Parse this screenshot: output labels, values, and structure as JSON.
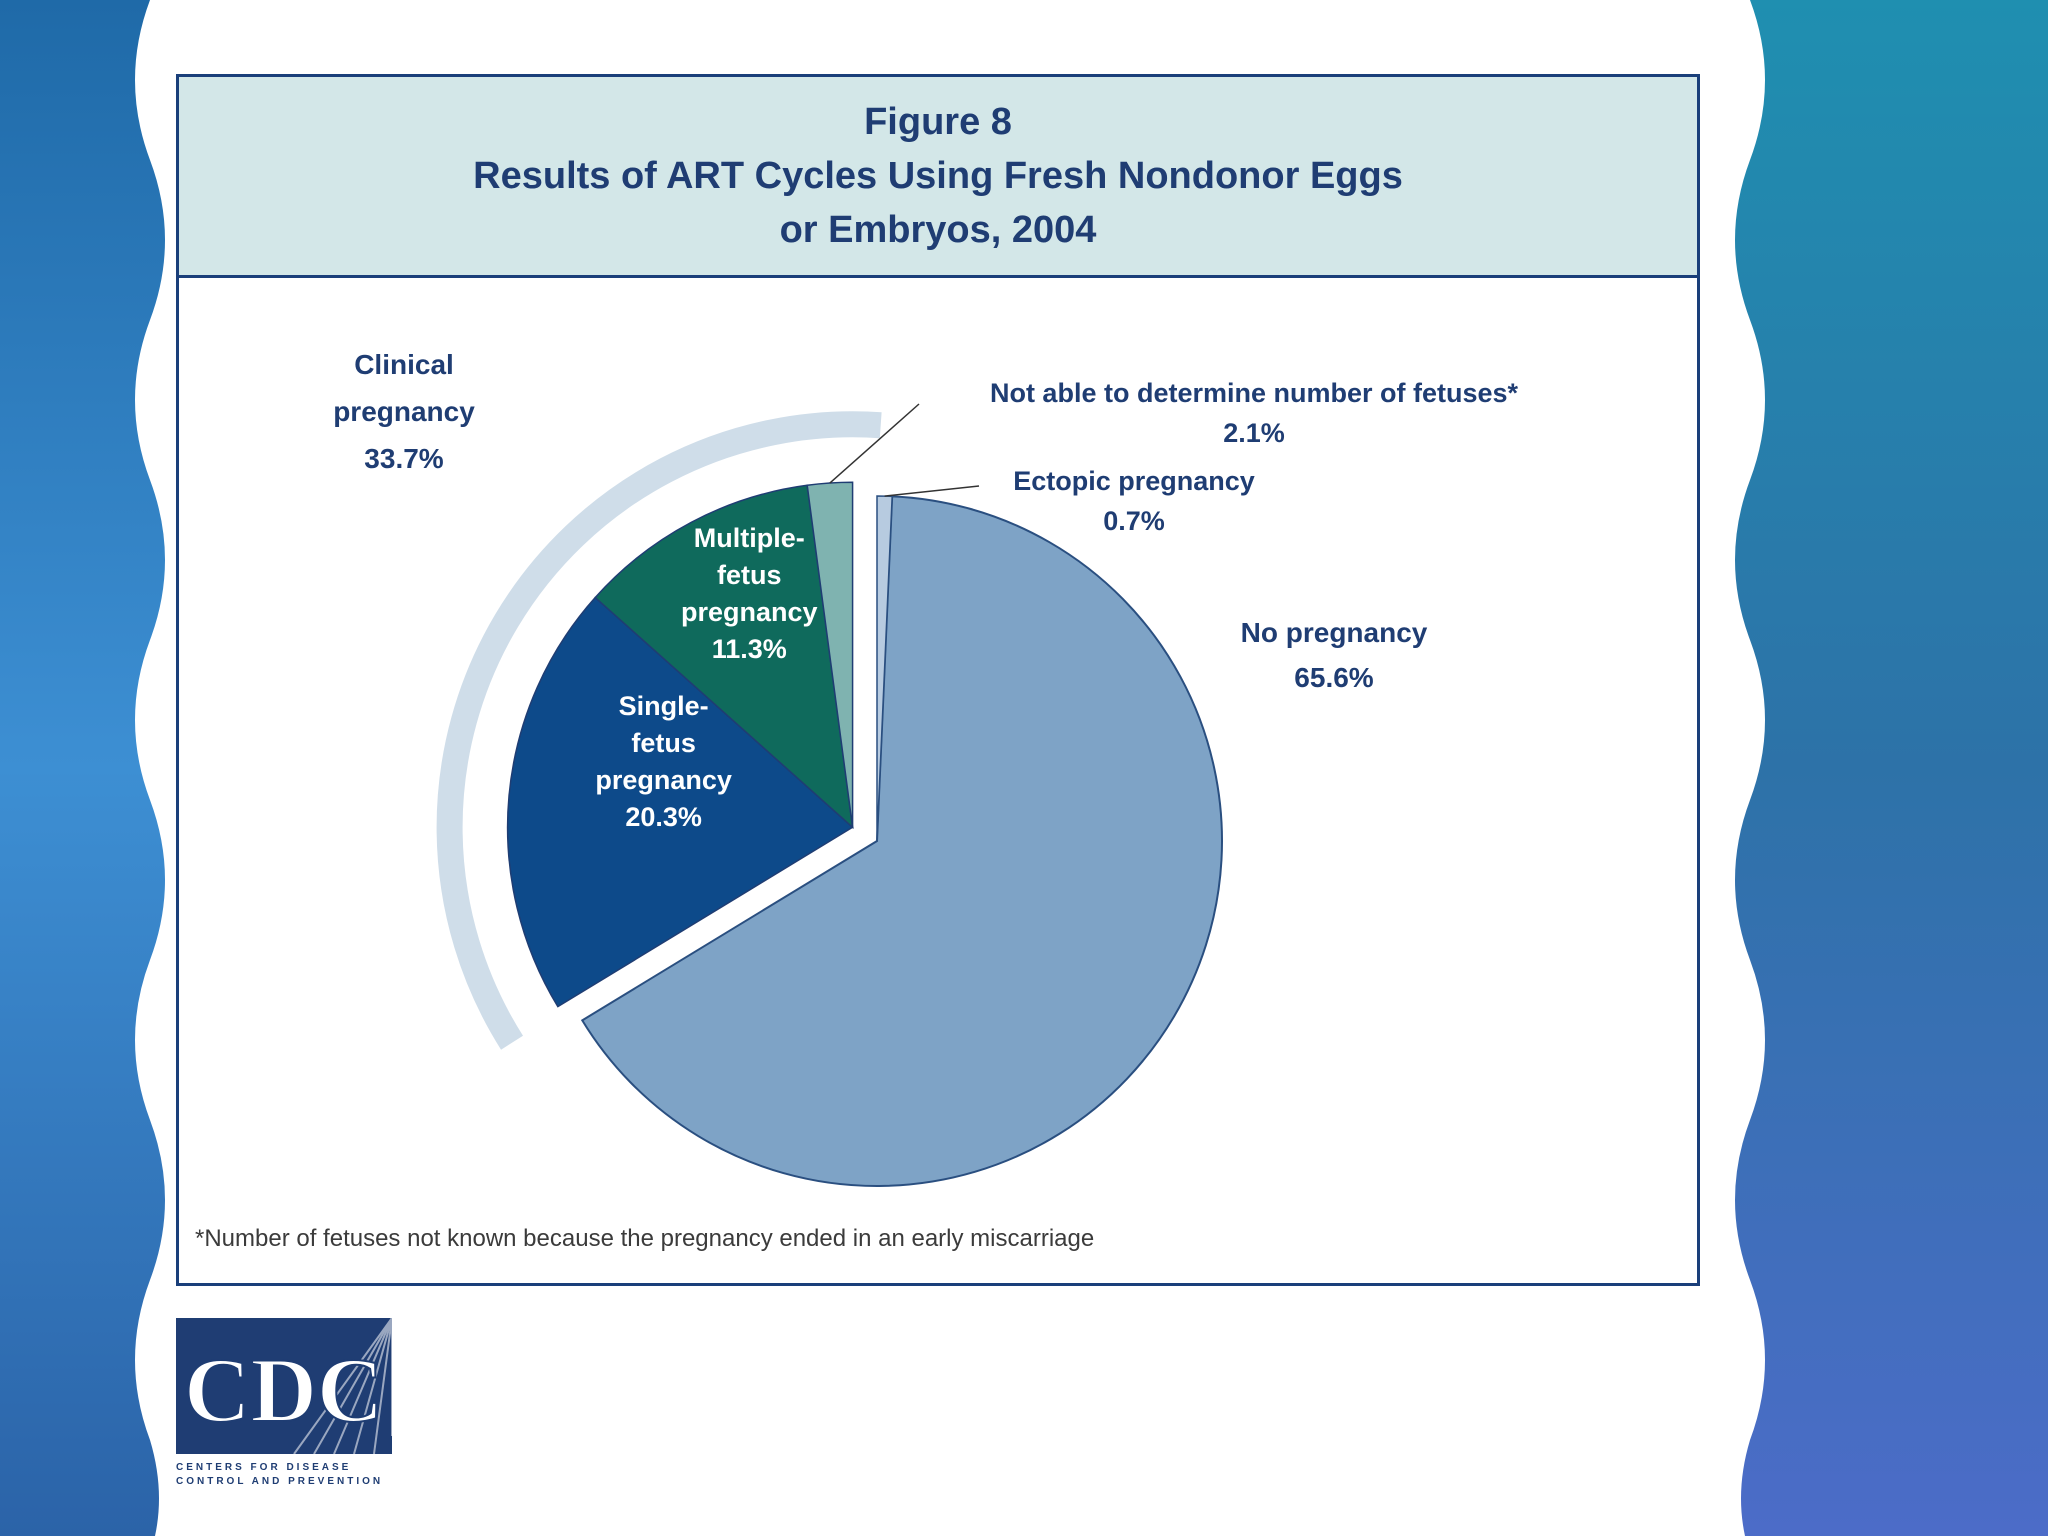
{
  "figure": {
    "title_line1": "Figure 8",
    "title_line2": "Results of ART Cycles Using Fresh Nondonor Eggs",
    "title_line3": "or Embryos, 2004",
    "footnote": "*Number of fetuses not known because the pregnancy ended in an early miscarriage"
  },
  "chart_data": {
    "type": "pie",
    "title": "Results of ART Cycles Using Fresh Nondonor Eggs or Embryos, 2004",
    "slices": [
      {
        "key": "no_pregnancy",
        "label_lines": [
          "No pregnancy"
        ],
        "value_label": "65.6%",
        "value": 65.6,
        "color": "#7ea3c6"
      },
      {
        "key": "single",
        "label_lines": [
          "Single-",
          "fetus",
          "pregnancy"
        ],
        "value_label": "20.3%",
        "value": 20.3,
        "color": "#0d4a8a"
      },
      {
        "key": "multiple",
        "label_lines": [
          "Multiple-",
          "fetus",
          "pregnancy"
        ],
        "value_label": "11.3%",
        "value": 11.3,
        "color": "#0f6a5c"
      },
      {
        "key": "not_determined",
        "label_lines": [
          "Not able to determine number of fetuses*"
        ],
        "value_label": "2.1%",
        "value": 2.1,
        "color": "#7fb3b0"
      },
      {
        "key": "ectopic",
        "label_lines": [
          "Ectopic pregnancy"
        ],
        "value_label": "0.7%",
        "value": 0.7,
        "color": "#b7cbe0"
      }
    ],
    "group": {
      "label_lines": [
        "Clinical",
        "pregnancy"
      ],
      "value_label": "33.7%",
      "value": 33.7,
      "color": "#cfdde9"
    },
    "legend": "none"
  },
  "logo": {
    "text": "CDC",
    "subtitle_line1": "CENTERS FOR DISEASE",
    "subtitle_line2": "CONTROL AND PREVENTION",
    "color": "#1f3d73"
  },
  "colors": {
    "frame": "#1a3f7a",
    "title_band": "#d3e7e8",
    "title_text": "#1f3d73",
    "label_text": "#1f3d73",
    "background_blue": "#2f7cc0"
  }
}
